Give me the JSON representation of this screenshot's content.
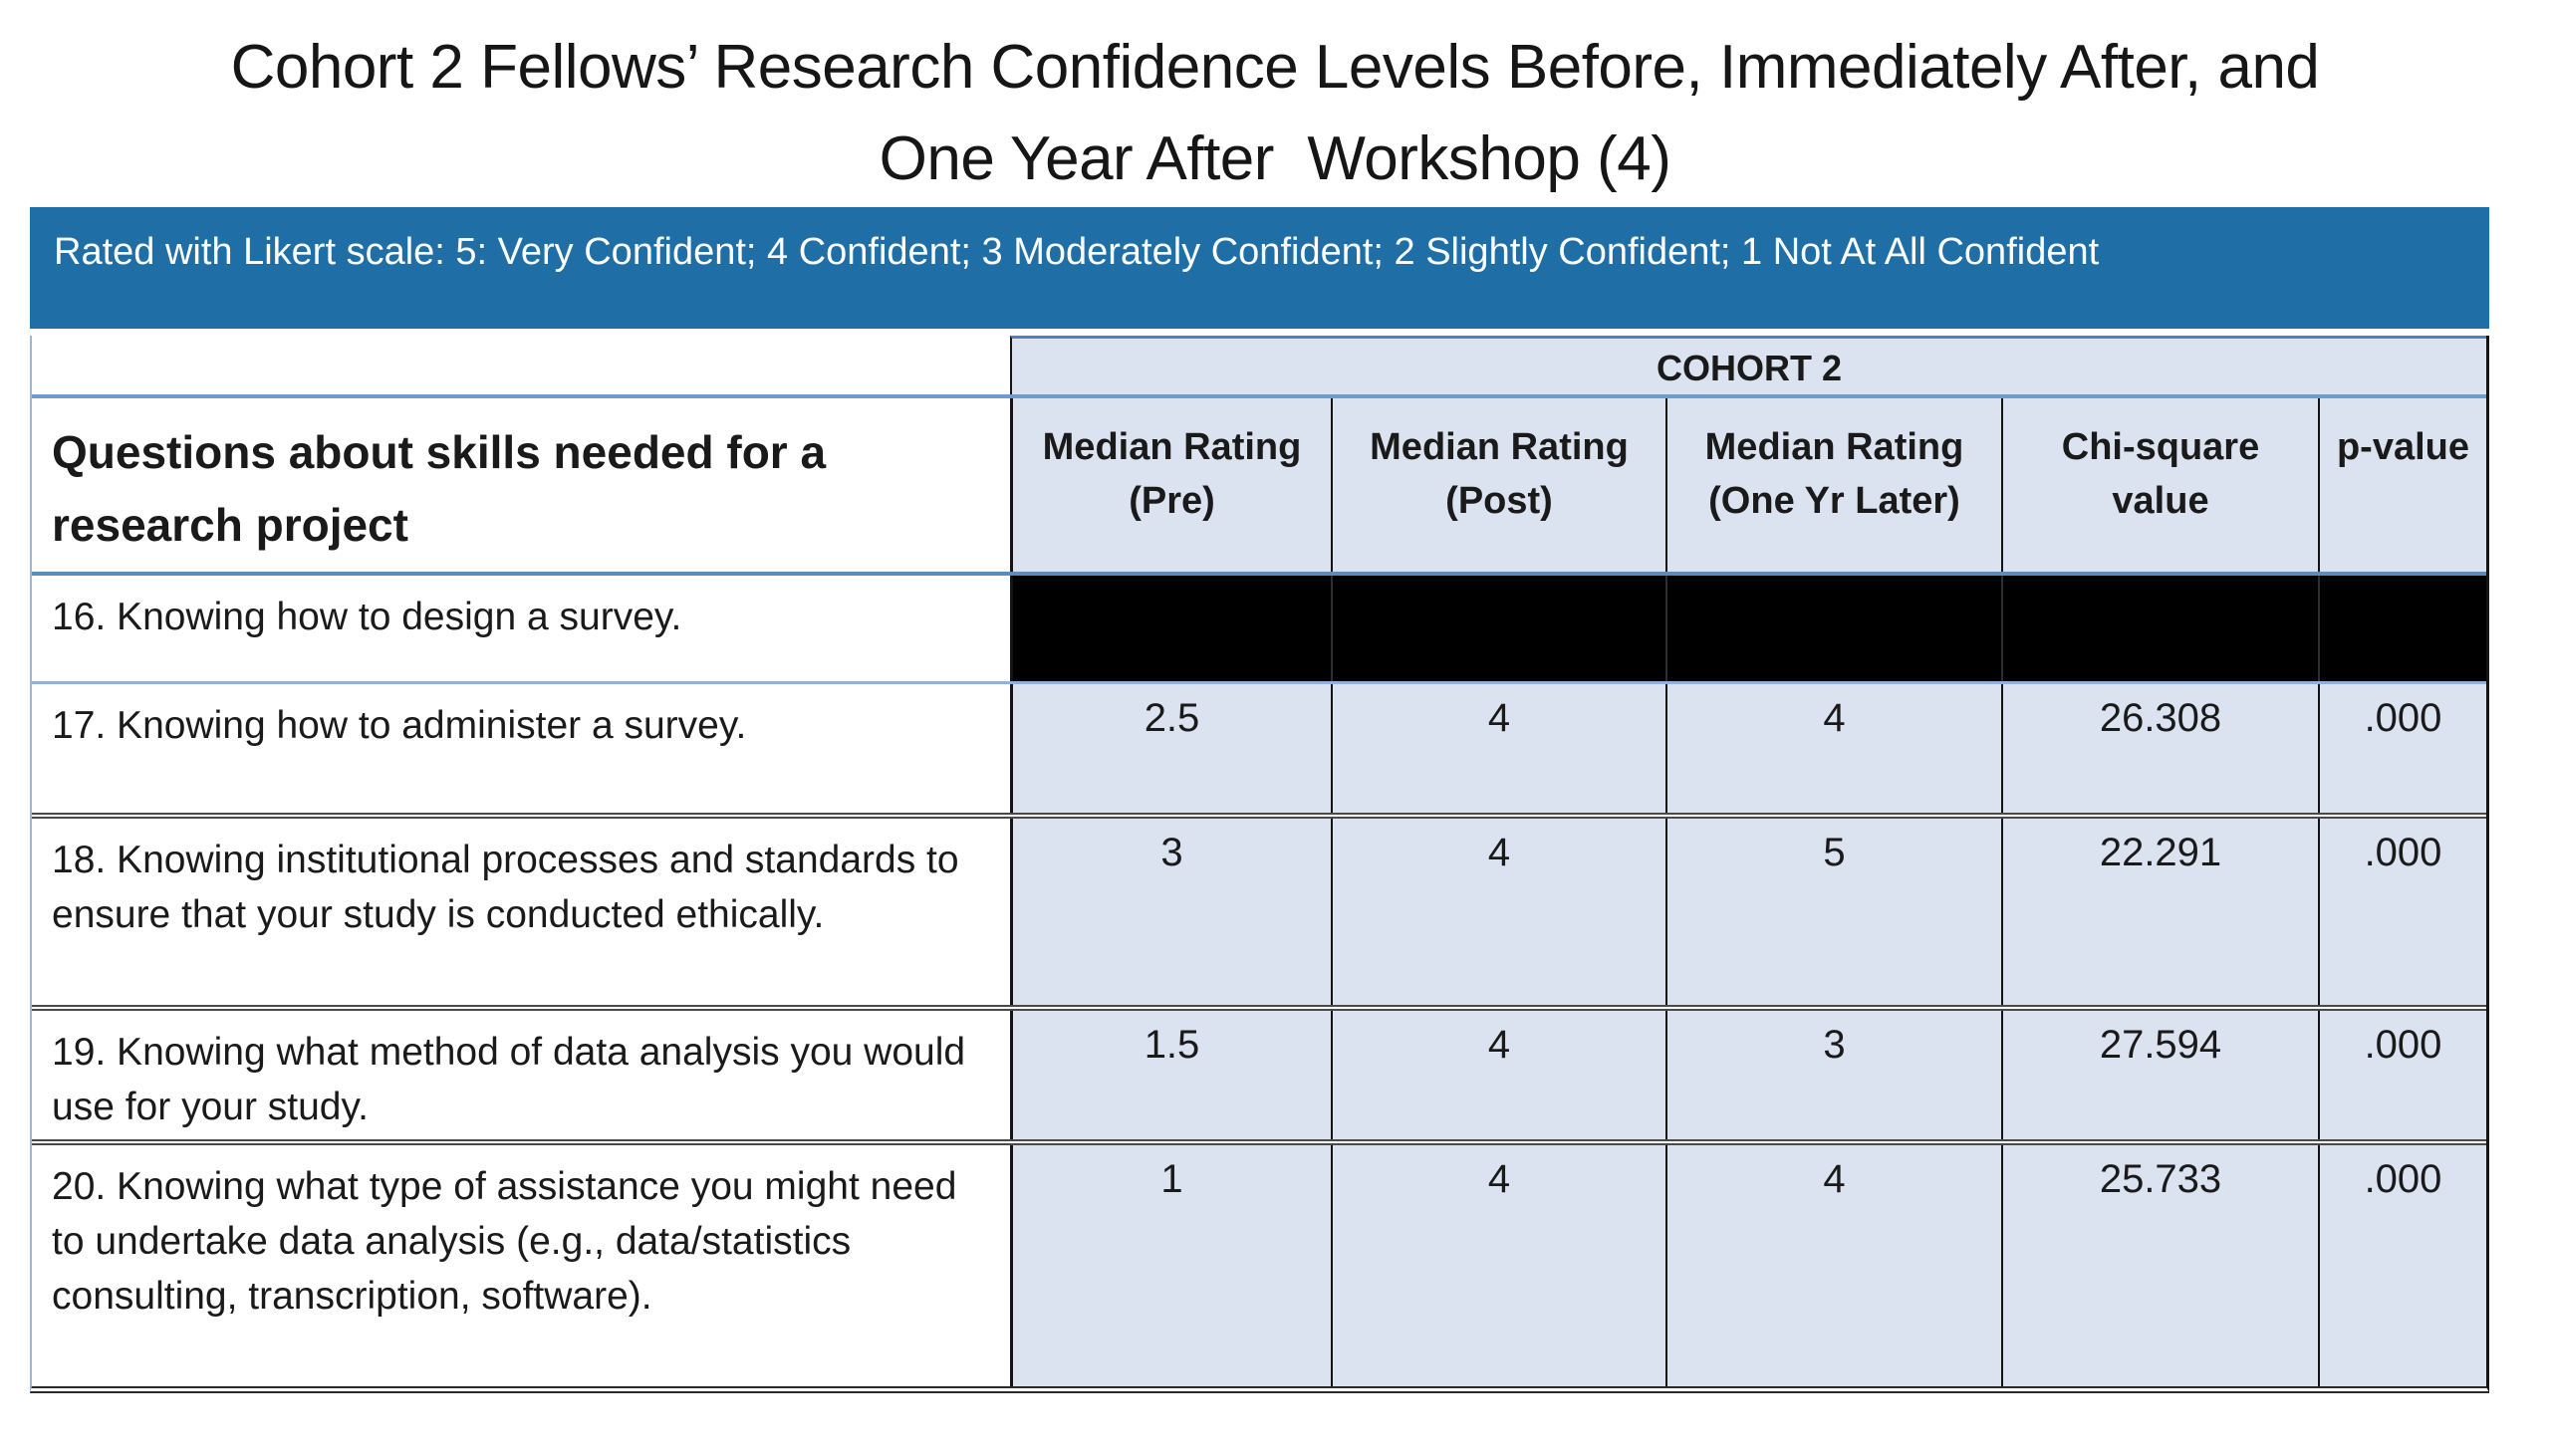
{
  "title": {
    "line1": "Cohort 2 Fellows’ Research Confidence Levels Before, Immediately After, and",
    "line2": "One Year After  Workshop (4)"
  },
  "likert_note": "Rated with Likert scale: 5: Very Confident; 4 Confident; 3 Moderately Confident; 2 Slightly Confident; 1 Not At All Confident",
  "table": {
    "group_header": "COHORT 2",
    "question_header": "Questions about skills needed for a research project",
    "columns": [
      "Median Rating\n(Pre)",
      "Median Rating\n(Post)",
      "Median Rating\n(One Yr Later)",
      "Chi-square\nvalue",
      "p-value"
    ],
    "rows": [
      {
        "question": "16. Knowing how to design a survey.",
        "pre": "",
        "post": "",
        "year": "",
        "chi": "",
        "p": "",
        "redacted": true
      },
      {
        "question": "17. Knowing how to administer a survey.",
        "pre": "2.5",
        "post": "4",
        "year": "4",
        "chi": "26.308",
        "p": ".000",
        "redacted": false
      },
      {
        "question": "18. Knowing institutional processes and standards to ensure that your study is conducted ethically.",
        "pre": "3",
        "post": "4",
        "year": "5",
        "chi": "22.291",
        "p": ".000",
        "redacted": false
      },
      {
        "question": "19. Knowing what method of data analysis you would use for your study.",
        "pre": "1.5",
        "post": "4",
        "year": "3",
        "chi": "27.594",
        "p": ".000",
        "redacted": false
      },
      {
        "question": "20. Knowing what type of assistance you might need to undertake data analysis (e.g., data/statistics consulting, transcription, software).",
        "pre": "1",
        "post": "4",
        "year": "4",
        "chi": "25.733",
        "p": ".000",
        "redacted": false
      }
    ]
  },
  "colors": {
    "banner_blue": "#1F6FA6",
    "cell_light_blue": "#DCE3F0",
    "border_blue": "#6D9DCB",
    "border_dark": "#4A4A4A",
    "redacted_black": "#000000"
  }
}
